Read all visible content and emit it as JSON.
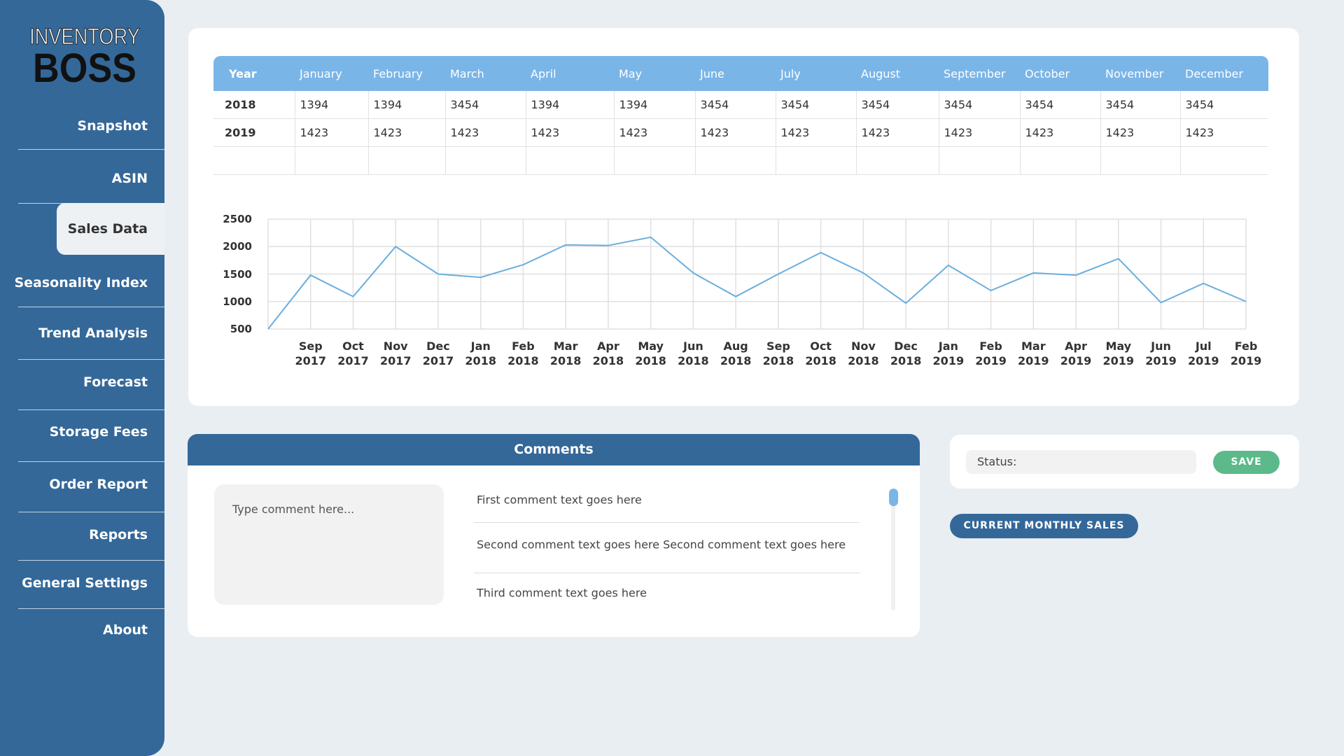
{
  "sidebar": {
    "logo_top": "INVENTORY",
    "logo_bottom": "BOSS",
    "nav": [
      "Snapshot",
      "ASIN",
      "Sales Data",
      "Seasonality Index",
      "Trend Analysis",
      "Forecast",
      "Storage Fees",
      "Order Report",
      "Reports",
      "General Settings",
      "About"
    ],
    "active": 2
  },
  "table": {
    "header": [
      "Year",
      "January",
      "February",
      "March",
      "April",
      "May",
      "June",
      "July",
      "August",
      "September",
      "October",
      "November",
      "December"
    ],
    "rows": [
      [
        "2018",
        "1394",
        "1394",
        "3454",
        "1394",
        "1394",
        "3454",
        "3454",
        "3454",
        "3454",
        "3454",
        "3454",
        "3454"
      ],
      [
        "2019",
        "1423",
        "1423",
        "1423",
        "1423",
        "1423",
        "1423",
        "1423",
        "1423",
        "1423",
        "1423",
        "1423",
        "1423"
      ]
    ]
  },
  "chart_data": {
    "type": "line",
    "categories": [
      null,
      "Sep 2017",
      "Oct 2017",
      "Nov 2017",
      "Dec 2017",
      "Jan 2018",
      "Feb 2018",
      "Mar 2018",
      "Apr 2018",
      "May 2018",
      "Jun 2018",
      "Aug 2018",
      "Sep 2018",
      "Oct 2018",
      "Nov 2018",
      "Dec 2018",
      "Jan 2019",
      "Feb 2019",
      "Mar 2019",
      "Apr 2019",
      "May 2019",
      "Jun 2019",
      "Jul 2019",
      "Feb 2019"
    ],
    "values": [
      500,
      1480,
      1090,
      2000,
      1500,
      1440,
      1670,
      2030,
      2020,
      2170,
      1520,
      1090,
      1500,
      1890,
      1520,
      970,
      1660,
      1200,
      1520,
      1480,
      1780,
      980,
      1330,
      1000
    ],
    "color": "#6aaede",
    "ylim": [
      500,
      2500
    ],
    "yticks": [
      500,
      1000,
      1500,
      2000,
      2500
    ],
    "grid": true
  },
  "comments": {
    "title": "Comments",
    "placeholder": "Type comment here...",
    "items": [
      "First comment text goes here",
      "Second comment text goes here Second comment text goes here",
      "Third comment text goes here"
    ]
  },
  "status": {
    "label": "Status:",
    "button": "SAVE"
  },
  "current_button": "CURRENT MONTHLY SALES"
}
